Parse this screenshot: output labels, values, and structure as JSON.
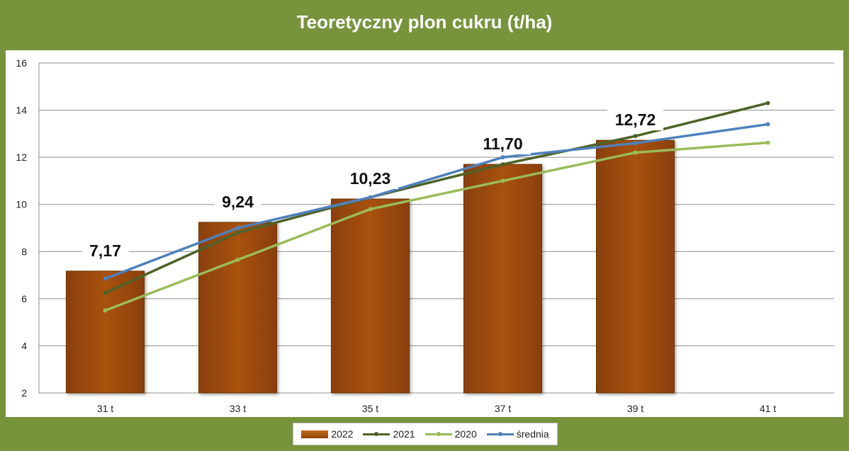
{
  "chart_data": {
    "type": "bar",
    "title": "Teoretyczny plon cukru (t/ha)",
    "categories": [
      "31 t",
      "33 t",
      "35 t",
      "37 t",
      "39 t",
      "41 t"
    ],
    "ylim": [
      2,
      16
    ],
    "yticks": [
      "2",
      "4",
      "6",
      "8",
      "10",
      "12",
      "14",
      "16"
    ],
    "grid": true,
    "legend_position": "bottom",
    "bar_series": {
      "name": "2022",
      "values": [
        7.17,
        9.24,
        10.23,
        11.7,
        12.72,
        null
      ],
      "data_labels": [
        "7,17",
        "9,24",
        "10,23",
        "11,70",
        "12,72",
        ""
      ],
      "color": "#a04c0e"
    },
    "line_series": [
      {
        "name": "2021",
        "values": [
          6.25,
          8.8,
          10.3,
          11.7,
          12.9,
          14.3
        ],
        "color": "#4f6228"
      },
      {
        "name": "2020",
        "values": [
          5.5,
          7.65,
          9.8,
          11.0,
          12.2,
          12.62
        ],
        "color": "#9bbb59"
      },
      {
        "name": "średnia",
        "values": [
          6.85,
          9.0,
          10.3,
          12.0,
          12.6,
          13.4
        ],
        "color": "#4f81bd"
      }
    ]
  }
}
